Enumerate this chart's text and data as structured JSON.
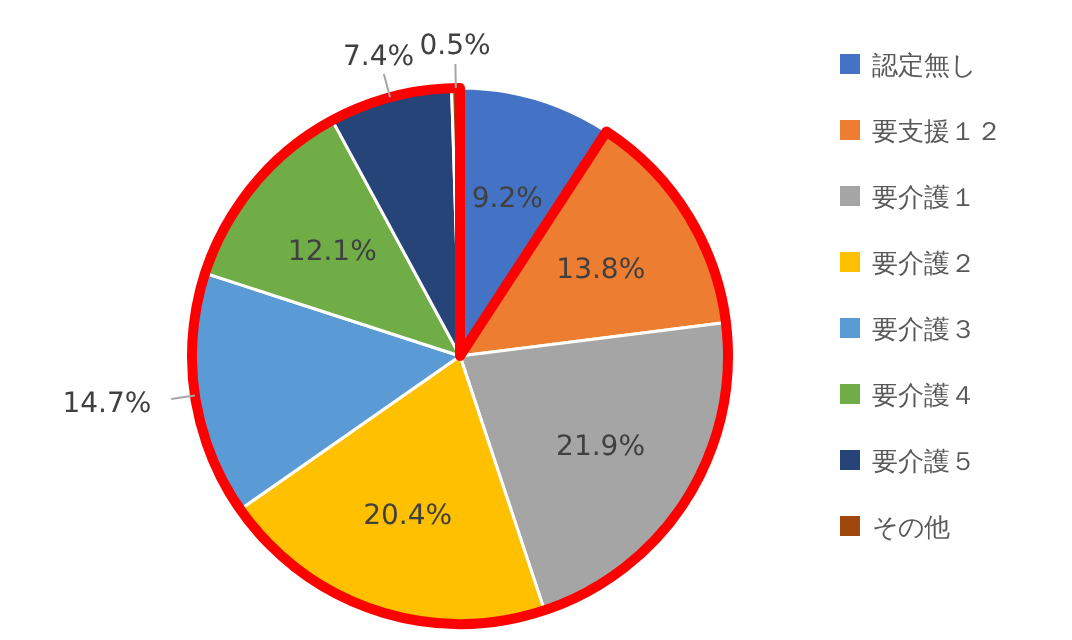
{
  "chart_data": {
    "type": "pie",
    "categories": [
      "認定無し",
      "要支援１２",
      "要介護１",
      "要介護２",
      "要介護３",
      "要介護４",
      "要介護５",
      "その他"
    ],
    "values": [
      9.2,
      13.8,
      21.9,
      20.4,
      14.7,
      12.1,
      7.4,
      0.5
    ],
    "colors": [
      "#4472c4",
      "#ed7d31",
      "#a5a5a5",
      "#ffc000",
      "#5b9bd5",
      "#70ad47",
      "#264478",
      "#9e480e"
    ],
    "value_labels": [
      "9.2%",
      "13.8%",
      "21.9%",
      "20.4%",
      "14.7%",
      "12.1%",
      "7.4%",
      "0.5%"
    ],
    "legend": "right"
  }
}
